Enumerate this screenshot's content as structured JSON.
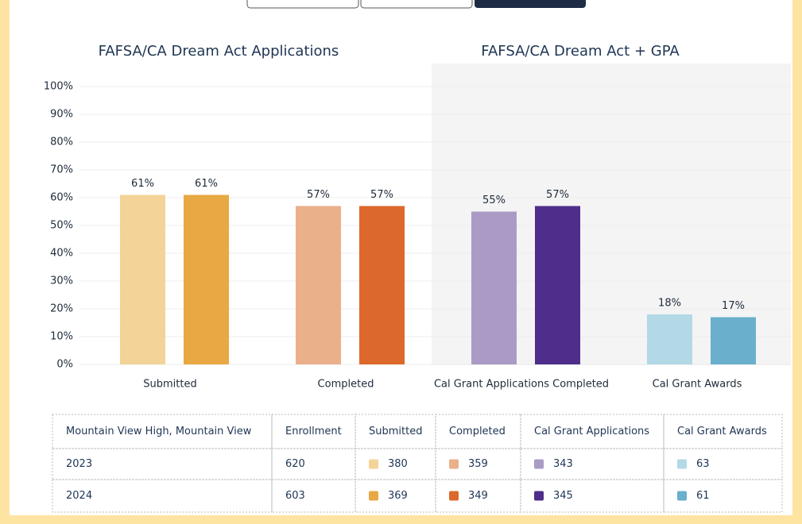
{
  "chart_data": {
    "type": "bar",
    "titles": [
      "FAFSA/CA Dream Act Applications",
      "FAFSA/CA Dream Act + GPA"
    ],
    "categories": [
      "Submitted",
      "Completed",
      "Cal Grant Applications Completed",
      "Cal Grant Awards"
    ],
    "series": [
      {
        "colors": [
          "#f3d398",
          "#eab08a",
          "#a99bc6",
          "#b3d9e6"
        ],
        "values": [
          61,
          57,
          55,
          18
        ],
        "value_labels": [
          "61%",
          "57%",
          "55%",
          "18%"
        ]
      },
      {
        "colors": [
          "#e8a844",
          "#dc682c",
          "#4e2e8a",
          "#6aafcc"
        ],
        "values": [
          61,
          57,
          57,
          17
        ],
        "value_labels": [
          "61%",
          "57%",
          "57%",
          "17%"
        ]
      }
    ],
    "ylim": [
      0,
      100
    ],
    "yticks": [
      {
        "value": 0,
        "label": "0%"
      },
      {
        "value": 10,
        "label": "10%"
      },
      {
        "value": 20,
        "label": "20%"
      },
      {
        "value": 30,
        "label": "30%"
      },
      {
        "value": 40,
        "label": "40%"
      },
      {
        "value": 50,
        "label": "50%"
      },
      {
        "value": 60,
        "label": "60%"
      },
      {
        "value": 70,
        "label": "70%"
      },
      {
        "value": 80,
        "label": "80%"
      },
      {
        "value": 90,
        "label": "90%"
      },
      {
        "value": 100,
        "label": "100%"
      }
    ],
    "grid": true
  },
  "table": {
    "header": [
      "Mountain View High, Mountain View",
      "Enrollment",
      "Submitted",
      "Completed",
      "Cal Grant Applications",
      "Cal Grant Awards"
    ],
    "rows": [
      [
        "2023",
        "620",
        "380",
        "359",
        "343",
        "63"
      ],
      [
        "2024",
        "603",
        "369",
        "349",
        "345",
        "61"
      ]
    ]
  }
}
